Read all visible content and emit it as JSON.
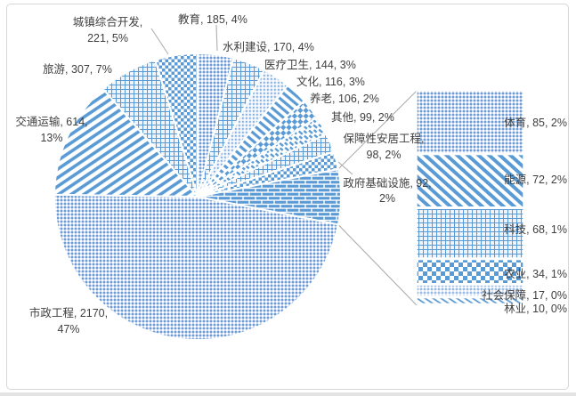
{
  "chart_data": {
    "type": "pie",
    "subtype": "bar-of-pie",
    "title": "",
    "legend": "none",
    "label_format": "name, value, percent",
    "pie_slices": [
      {
        "id": "jiaoyu",
        "name": "教育",
        "value": 185,
        "pct": "4%",
        "pattern": "fine-dither"
      },
      {
        "id": "shuili",
        "name": "水利建设",
        "value": 170,
        "pct": "4%",
        "pattern": "grid"
      },
      {
        "id": "yiliao",
        "name": "医疗卫生",
        "value": 144,
        "pct": "3%",
        "pattern": "light-dots"
      },
      {
        "id": "wenhua",
        "name": "文化",
        "value": 116,
        "pct": "3%",
        "pattern": "diagonal-stripes-down"
      },
      {
        "id": "yanglao",
        "name": "养老",
        "value": 106,
        "pct": "2%",
        "pattern": "diamond-checker"
      },
      {
        "id": "qita",
        "name": "其他",
        "value": 99,
        "pct": "2%",
        "pattern": "diagonal-dashes-down"
      },
      {
        "id": "baozhang",
        "name": "保障性安居工程",
        "value": 98,
        "pct": "2%",
        "pattern": "grid"
      },
      {
        "id": "zhengfu",
        "name": "政府基础设施",
        "value": 92,
        "pct": "2%",
        "pattern": "checkerboard"
      },
      {
        "id": "grouped",
        "name": null,
        "value": null,
        "pct": null,
        "pattern": "brick",
        "grouped": true
      },
      {
        "id": "shizheng",
        "name": "市政工程",
        "value": 2170,
        "pct": "47%",
        "pattern": "fine-dither"
      },
      {
        "id": "jiaotong",
        "name": "交通运输",
        "value": 614,
        "pct": "13%",
        "pattern": "diagonal-stripes-up"
      },
      {
        "id": "lvyou",
        "name": "旅游",
        "value": 307,
        "pct": "7%",
        "pattern": "grid"
      },
      {
        "id": "chengzhen",
        "name": "城镇综合开发",
        "value": 221,
        "pct": "5%",
        "pattern": "checkerboard"
      }
    ],
    "bar_items": [
      {
        "id": "tiyu",
        "name": "体育",
        "value": 85,
        "pct": "2%",
        "pattern": "fine-dither"
      },
      {
        "id": "nengyuan",
        "name": "能源",
        "value": 72,
        "pct": "2%",
        "pattern": "diagonal-stripes-down-bold"
      },
      {
        "id": "keji",
        "name": "科技",
        "value": 68,
        "pct": "1%",
        "pattern": "grid"
      },
      {
        "id": "nongye",
        "name": "农业",
        "value": 34,
        "pct": "1%",
        "pattern": "checkerboard-bold"
      },
      {
        "id": "shehui",
        "name": "社会保障",
        "value": 17,
        "pct": "0%",
        "pattern": "fine-dither-light"
      },
      {
        "id": "linye",
        "name": "林业",
        "value": 10,
        "pct": "0%",
        "pattern": "diagonal-stripes-down-thin"
      }
    ],
    "colors": {
      "pattern_blue": "#5b9bd5",
      "dither_bg": "#c9daf0",
      "label_text": "#3f3f3f",
      "connector_gray": "#aeaeae",
      "frame_gray": "#d6d6d6"
    }
  }
}
